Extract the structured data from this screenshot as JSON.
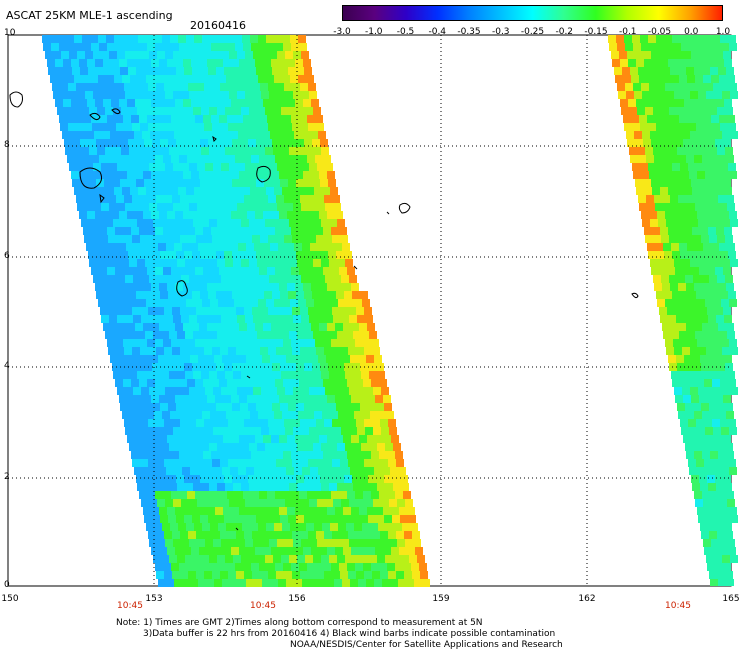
{
  "header": {
    "title": "ASCAT 25KM MLE-1 ascending",
    "date": "20160416"
  },
  "colorbar": {
    "labels": [
      "-3.0",
      "-1.0",
      "-0.5",
      "-0.4",
      "-0.35",
      "-0.3",
      "-0.25",
      "-0.2",
      "-0.15",
      "-0.1",
      "-0.05",
      "0.0",
      "1.0"
    ],
    "colors": [
      "#3b0050",
      "#5a007f",
      "#2e00c8",
      "#0030ff",
      "#0080ff",
      "#00c0ff",
      "#00ffff",
      "#30ff90",
      "#30ff20",
      "#b0ff00",
      "#ffff00",
      "#ffa000",
      "#ff2000"
    ]
  },
  "map": {
    "y_ticks": [
      "10",
      "8",
      "6",
      "4",
      "2",
      "0"
    ],
    "x_ticks": [
      "150",
      "153",
      "156",
      "159",
      "162",
      "165"
    ],
    "time_labels": [
      "10:45",
      "10:45",
      "10:45"
    ]
  },
  "footer": {
    "line1": "Note: 1) Times are GMT 2)Times along bottom correspond to measurement at 5N",
    "line2": "3)Data buffer is 22 hrs from 20160416 4) Black wind barbs indicate possible contamination",
    "line3": "NOAA/NESDIS/Center for Satellite Applications and Research"
  }
}
